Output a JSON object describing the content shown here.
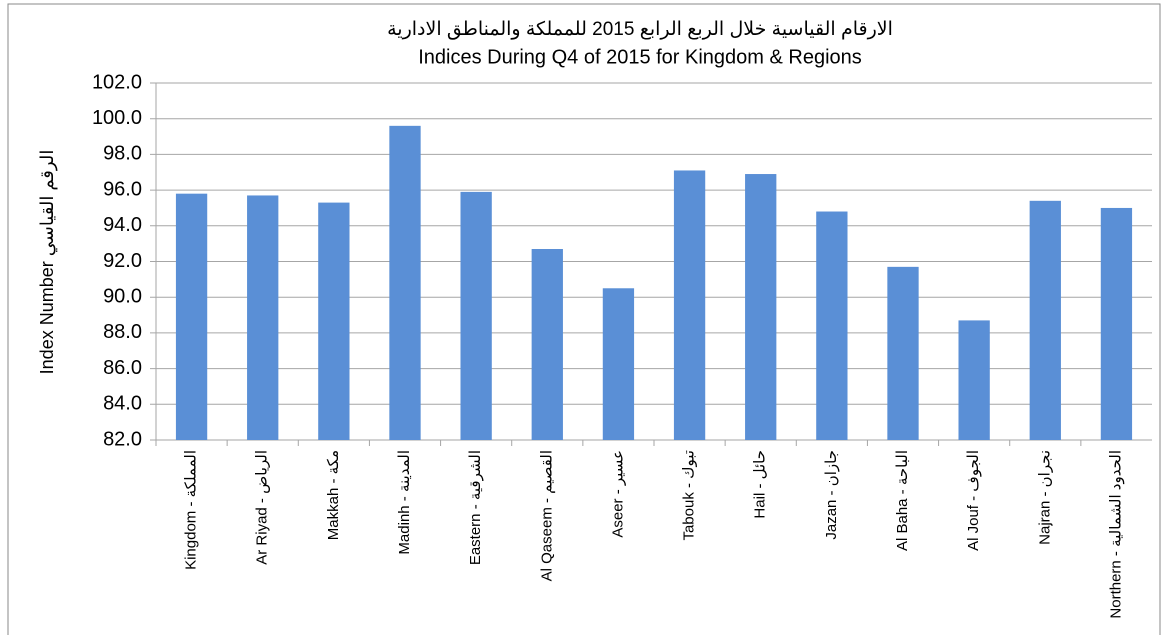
{
  "chart_data": {
    "type": "bar",
    "title": "الارقام القياسية خلال الربع الرابع 2015  للمملكة والمناطق الادارية",
    "subtitle": "Indices During Q4 of 2015 for Kingdom & Regions",
    "y_label": "Index Number   الرقم القياسي",
    "categories": [
      "Kingdom - المملكة",
      "Ar Riyad - الرياض",
      "Makkah - مكة",
      "Madinh - المدينة",
      "Eastern - الشرقية",
      "Al Qaseem - القصيم",
      "Aseer - عسير",
      "Tabouk - تبوك",
      "Hail - حائل",
      "Jazan - جازان",
      "Al Baha - الباحة",
      "Al Jouf - الجوف",
      "Najran - نجران",
      "Northern - الحدود الشمالية"
    ],
    "values": [
      95.8,
      95.7,
      95.3,
      99.6,
      95.9,
      92.7,
      90.5,
      97.1,
      96.9,
      94.8,
      91.7,
      88.7,
      95.4,
      95.0
    ],
    "color": "#5a8fd6",
    "ylim": [
      82,
      102
    ],
    "yticks": [
      {
        "value": 82,
        "label": "82.0"
      },
      {
        "value": 84,
        "label": "84.0"
      },
      {
        "value": 86,
        "label": "86.0"
      },
      {
        "value": 88,
        "label": "88.0"
      },
      {
        "value": 90,
        "label": "90.0"
      },
      {
        "value": 92,
        "label": "92.0"
      },
      {
        "value": 94,
        "label": "94.0"
      },
      {
        "value": 96,
        "label": "96.0"
      },
      {
        "value": 98,
        "label": "98.0"
      },
      {
        "value": 100,
        "label": "100.0"
      },
      {
        "value": 102,
        "label": "102.0"
      }
    ],
    "grid": true
  }
}
